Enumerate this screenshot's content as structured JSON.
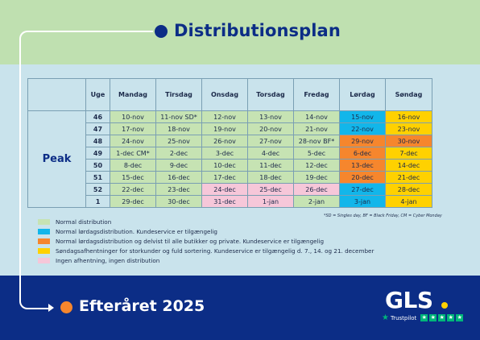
{
  "header": {
    "title": "Distributionsplan"
  },
  "footer": {
    "title": "Efteråret 2025"
  },
  "brand": {
    "logo_text": "GLS",
    "trustpilot_label": "Trustpilot"
  },
  "colors": {
    "top_band": "#bfe0b0",
    "mid_band": "#c9e3ec",
    "bottom_band": "#0c2d86",
    "normal": "#c6e3b3",
    "saturday_distribution": "#12b6ea",
    "saturday_partial": "#f6862d",
    "sunday_pickup": "#ffd100",
    "no_pickup": "#f6c7d9",
    "accent_dot": "#f6862d"
  },
  "table": {
    "peak_label": "Peak",
    "headers": [
      "Uge",
      "Mandag",
      "Tirsdag",
      "Onsdag",
      "Torsdag",
      "Fredag",
      "Lørdag",
      "Søndag"
    ],
    "rows": [
      {
        "week": "46",
        "days": [
          "10-nov",
          "11-nov SD*",
          "12-nov",
          "13-nov",
          "14-nov",
          "15-nov",
          "16-nov"
        ],
        "styles": [
          "g",
          "g",
          "g",
          "g",
          "g",
          "b",
          "y"
        ]
      },
      {
        "week": "47",
        "days": [
          "17-nov",
          "18-nov",
          "19-nov",
          "20-nov",
          "21-nov",
          "22-nov",
          "23-nov"
        ],
        "styles": [
          "g",
          "g",
          "g",
          "g",
          "g",
          "b",
          "y"
        ]
      },
      {
        "week": "48",
        "days": [
          "24-nov",
          "25-nov",
          "26-nov",
          "27-nov",
          "28-nov BF*",
          "29-nov",
          "30-nov"
        ],
        "styles": [
          "g",
          "g",
          "g",
          "g",
          "g",
          "o",
          "o"
        ]
      },
      {
        "week": "49",
        "days": [
          "1-dec CM*",
          "2-dec",
          "3-dec",
          "4-dec",
          "5-dec",
          "6-dec",
          "7-dec"
        ],
        "styles": [
          "g",
          "g",
          "g",
          "g",
          "g",
          "o",
          "y"
        ]
      },
      {
        "week": "50",
        "days": [
          "8-dec",
          "9-dec",
          "10-dec",
          "11-dec",
          "12-dec",
          "13-dec",
          "14-dec"
        ],
        "styles": [
          "g",
          "g",
          "g",
          "g",
          "g",
          "o",
          "y"
        ]
      },
      {
        "week": "51",
        "days": [
          "15-dec",
          "16-dec",
          "17-dec",
          "18-dec",
          "19-dec",
          "20-dec",
          "21-dec"
        ],
        "styles": [
          "g",
          "g",
          "g",
          "g",
          "g",
          "o",
          "y"
        ]
      },
      {
        "week": "52",
        "days": [
          "22-dec",
          "23-dec",
          "24-dec",
          "25-dec",
          "26-dec",
          "27-dec",
          "28-dec"
        ],
        "styles": [
          "g",
          "g",
          "p",
          "p",
          "p",
          "b",
          "y"
        ]
      },
      {
        "week": "1",
        "days": [
          "29-dec",
          "30-dec",
          "31-dec",
          "1-jan",
          "2-jan",
          "3-jan",
          "4-jan"
        ],
        "styles": [
          "g",
          "g",
          "p",
          "p",
          "g",
          "b",
          "y"
        ]
      }
    ]
  },
  "footnote": "*SD = Singles day, BF = Black Friday, CM = Cyber Monday",
  "legend": [
    {
      "color": "#c6e3b3",
      "text": "Normal distribution"
    },
    {
      "color": "#12b6ea",
      "text": "Normal lørdagsdistribution. Kundeservice er tilgængelig"
    },
    {
      "color": "#f6862d",
      "text": "Normal lørdagsdistribution og delvist til alle butikker og private. Kundeservice er tilgængelig"
    },
    {
      "color": "#ffd100",
      "text": "Søndagsafhentninger for storkunder og fuld sortering. Kundeservice er tilgængelig d. 7., 14. og 21. december"
    },
    {
      "color": "#f6c7d9",
      "text": "Ingen afhentning, ingen distribution"
    }
  ]
}
